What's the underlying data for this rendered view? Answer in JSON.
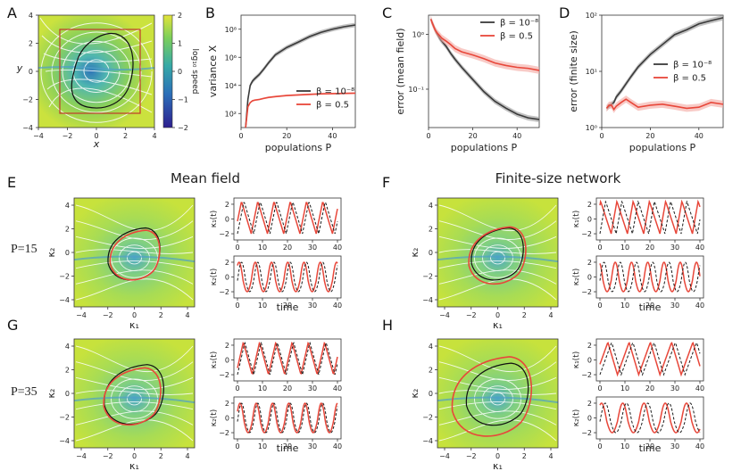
{
  "colors": {
    "black_series": "#3a3a3a",
    "red_series": "#e8473a",
    "red_band": "#f4a6a0",
    "black_band": "#9a9a9a",
    "dashed": "#1a1a1a",
    "field_low": "#2f3fa0",
    "field_mid": "#3aa7c8",
    "field_high": "#d7e23a",
    "rect": "#c0392b"
  },
  "panel_letters": {
    "A": "A",
    "B": "B",
    "C": "C",
    "D": "D",
    "E": "E",
    "F": "F",
    "G": "G",
    "H": "H"
  },
  "section_titles": {
    "mean_field": "Mean field",
    "finite_size": "Finite-size network"
  },
  "row_labels": {
    "p15": "P=15",
    "p35": "P=35"
  },
  "chart_data": [
    {
      "id": "A",
      "type": "heatmap",
      "xlabel": "x",
      "ylabel": "y",
      "xlim": [
        -4,
        4
      ],
      "ylim": [
        -4,
        4
      ],
      "xticks": [
        "−4",
        "−2",
        "0",
        "2",
        "4"
      ],
      "yticks": [
        "−4",
        "−2",
        "0",
        "2",
        "4"
      ],
      "colorbar": {
        "label": "log₁₀ speed",
        "range": [
          -2,
          2
        ],
        "ticks": [
          "2",
          "1",
          "0",
          "−1",
          "−2"
        ]
      },
      "rectangle": {
        "x": [
          -3,
          3
        ],
        "y": [
          -3,
          3
        ]
      },
      "limit_cycle": "closed orbit around origin"
    },
    {
      "id": "B",
      "type": "line",
      "xlabel": "populations P",
      "ylabel": "variance X",
      "xlim": [
        0,
        50
      ],
      "yscale": "log",
      "ylim_exp": [
        1,
        9
      ],
      "xticks": [
        "0",
        "20",
        "40"
      ],
      "yticks": [
        "10²",
        "10⁴",
        "10⁶",
        "10⁸"
      ],
      "legend": [
        "β = 10⁻⁸",
        "β = 0.5"
      ],
      "x": [
        2,
        3,
        4,
        5,
        6,
        8,
        10,
        12,
        15,
        20,
        25,
        30,
        35,
        40,
        45,
        50
      ],
      "series": [
        {
          "name": "β = 10⁻⁸",
          "values": [
            10,
            1000,
            10000,
            20000,
            30000,
            60000,
            150000,
            400000,
            1500000,
            5000000,
            12000000,
            30000000,
            60000000,
            100000000,
            150000000,
            200000000
          ]
        },
        {
          "name": "β = 0.5",
          "values": [
            10,
            300,
            600,
            800,
            900,
            1000,
            1200,
            1400,
            1600,
            1900,
            2100,
            2300,
            2500,
            2600,
            2700,
            2800
          ]
        }
      ]
    },
    {
      "id": "C",
      "type": "line",
      "xlabel": "populations P",
      "ylabel": "error (mean field)",
      "xlim": [
        0,
        50
      ],
      "yscale": "log",
      "ylim_exp": [
        -1.7,
        0.35
      ],
      "xticks": [
        "0",
        "20",
        "40"
      ],
      "yticks": [
        "10⁻¹",
        "10⁰"
      ],
      "legend": [
        "β = 10⁻⁸",
        "β = 0.5"
      ],
      "x": [
        1,
        2,
        3,
        4,
        5,
        6,
        8,
        10,
        12,
        15,
        20,
        25,
        30,
        35,
        40,
        45,
        50
      ],
      "series": [
        {
          "name": "β = 10⁻⁸",
          "values": [
            1.9,
            1.5,
            1.2,
            1.0,
            0.85,
            0.75,
            0.6,
            0.45,
            0.35,
            0.25,
            0.15,
            0.09,
            0.06,
            0.045,
            0.035,
            0.03,
            0.028
          ]
        },
        {
          "name": "β = 0.5",
          "values": [
            1.9,
            1.5,
            1.2,
            1.05,
            0.95,
            0.85,
            0.75,
            0.65,
            0.55,
            0.48,
            0.42,
            0.36,
            0.3,
            0.27,
            0.25,
            0.24,
            0.22
          ]
        }
      ]
    },
    {
      "id": "D",
      "type": "line",
      "xlabel": "populations P",
      "ylabel": "error (finite size)",
      "xlim": [
        0,
        50
      ],
      "yscale": "log",
      "ylim_exp": [
        0,
        2
      ],
      "xticks": [
        "0",
        "20",
        "40"
      ],
      "yticks": [
        "10⁰",
        "10¹",
        "10²"
      ],
      "legend": [
        "β = 10⁻⁸",
        "β = 0.5"
      ],
      "x": [
        2,
        3,
        4,
        5,
        6,
        8,
        10,
        12,
        15,
        20,
        25,
        30,
        35,
        40,
        45,
        50
      ],
      "series": [
        {
          "name": "β = 10⁻⁸",
          "values": [
            2.2,
            2.4,
            2.6,
            2.8,
            3.5,
            4.5,
            6,
            8,
            12,
            20,
            30,
            45,
            55,
            70,
            80,
            90
          ]
        },
        {
          "name": "β = 0.5",
          "values": [
            2.2,
            2.5,
            2.5,
            2.1,
            2.4,
            2.8,
            3.2,
            2.8,
            2.3,
            2.5,
            2.6,
            2.4,
            2.2,
            2.3,
            2.8,
            2.6
          ]
        }
      ]
    }
  ],
  "phase_panels": {
    "xlabel": "κ₁",
    "ylabel": "κ₂",
    "xticks": [
      "−4",
      "−2",
      "0",
      "2",
      "4"
    ],
    "yticks": [
      "−4",
      "−2",
      "0",
      "2",
      "4"
    ]
  },
  "timeseries_panels": {
    "xlabel": "time",
    "xticks": [
      "0",
      "10",
      "20",
      "30",
      "40"
    ],
    "yticks": [
      "−2",
      "0",
      "2"
    ],
    "ylabel1": "κ₁(t)",
    "ylabel2": "κ₂(t)"
  }
}
